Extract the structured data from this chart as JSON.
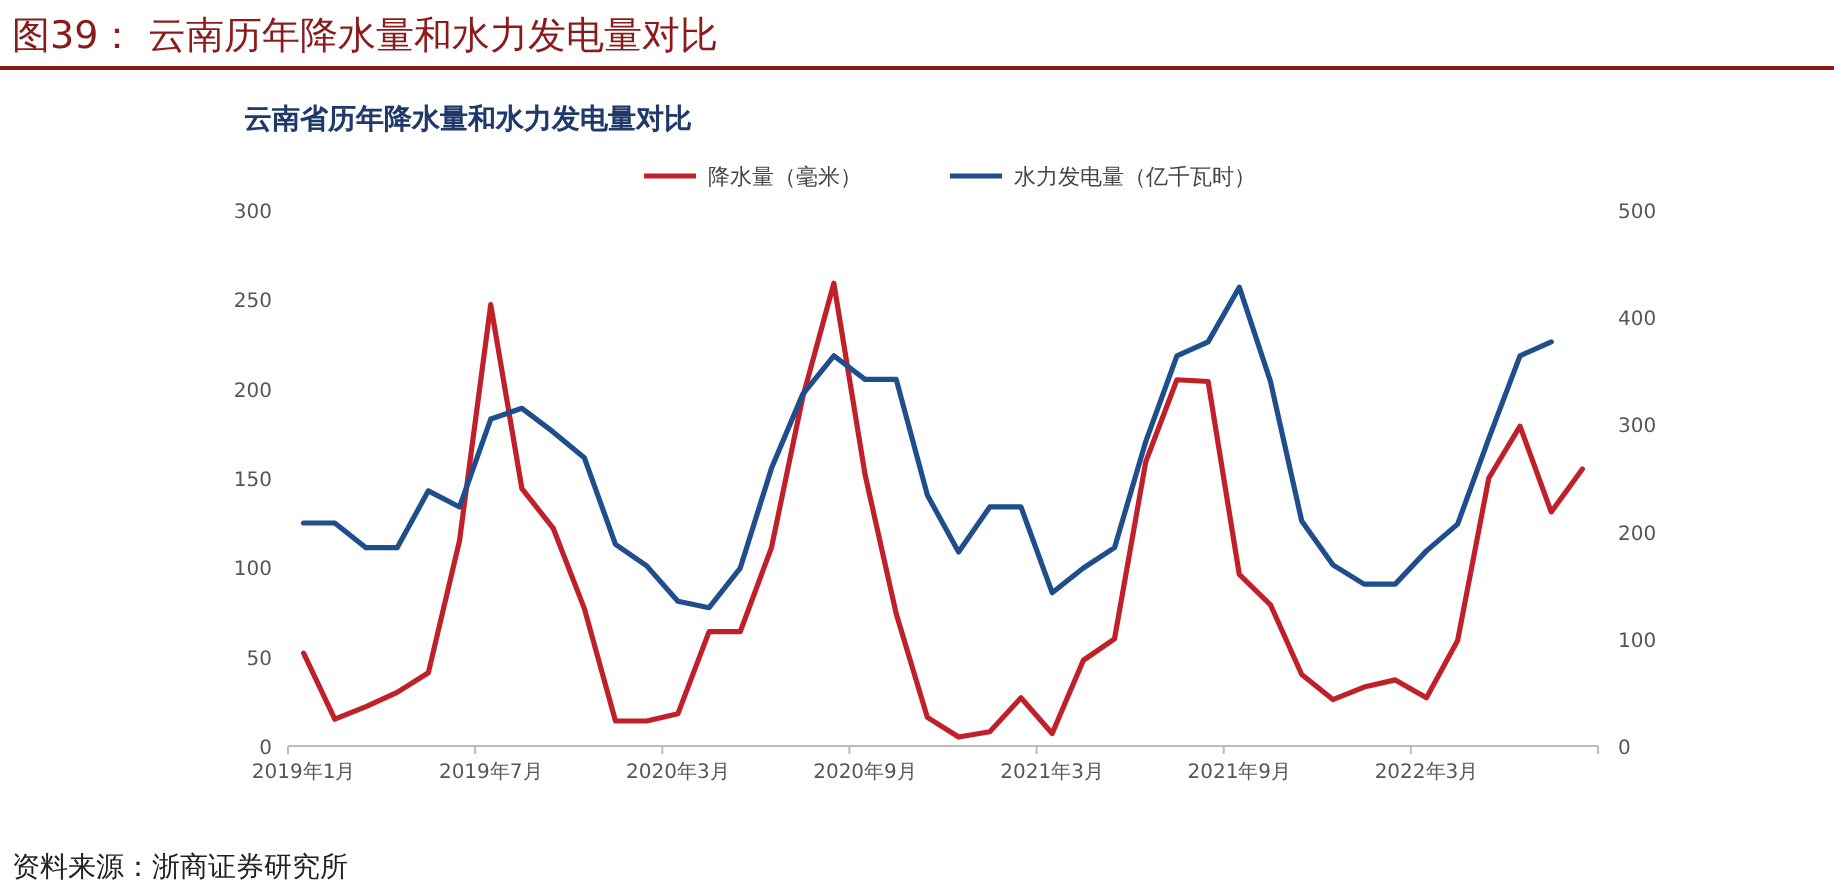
{
  "chart_data": {
    "type": "line",
    "title": "图39：  云南历年降水量和水力发电量对比",
    "subtitle": "云南省历年降水量和水力发电量对比",
    "categories": [
      "2019年1月",
      null,
      null,
      null,
      null,
      null,
      "2019年7月",
      null,
      null,
      null,
      null,
      null,
      "2020年3月",
      null,
      null,
      null,
      null,
      null,
      "2020年9月",
      null,
      null,
      null,
      null,
      null,
      "2021年3月",
      null,
      null,
      null,
      null,
      null,
      "2021年9月",
      null,
      null,
      null,
      null,
      null,
      "2022年3月",
      null,
      null,
      null,
      null,
      null
    ],
    "series": [
      {
        "name": "降水量（毫米）",
        "color": "#c0202a",
        "values": [
          52,
          15,
          22,
          30,
          41,
          115,
          247,
          144,
          122,
          77,
          14,
          14,
          18,
          64,
          64,
          111,
          195,
          259,
          152,
          74,
          16,
          5,
          8,
          27,
          7,
          48,
          60,
          159,
          205,
          204,
          96,
          79,
          40,
          26,
          33,
          37,
          27,
          59,
          150,
          179,
          131,
          155
        ]
      },
      {
        "name": "水力发电量（亿千瓦时）",
        "color": "#1f4e8c",
        "axis": "y2",
        "values": [
          208,
          208,
          185,
          185,
          238,
          223,
          305,
          315,
          293,
          269,
          188,
          168,
          135,
          129,
          166,
          259,
          328,
          364,
          342,
          342,
          234,
          181,
          223,
          223,
          143,
          166,
          185,
          284,
          364,
          377,
          428,
          340,
          210,
          169,
          151,
          151,
          182,
          207,
          287,
          364,
          377,
          null
        ]
      }
    ],
    "ylim": [
      0,
      300
    ],
    "yticks": [
      0,
      50,
      100,
      150,
      200,
      250,
      300
    ],
    "y2lim": [
      0,
      500
    ],
    "y2ticks": [
      0,
      100,
      200,
      300,
      400,
      500
    ],
    "legend": "top",
    "grid": false,
    "marker": "none",
    "line_style": "solid",
    "annotations": [
      "资料来源：浙商证券研究所"
    ]
  }
}
